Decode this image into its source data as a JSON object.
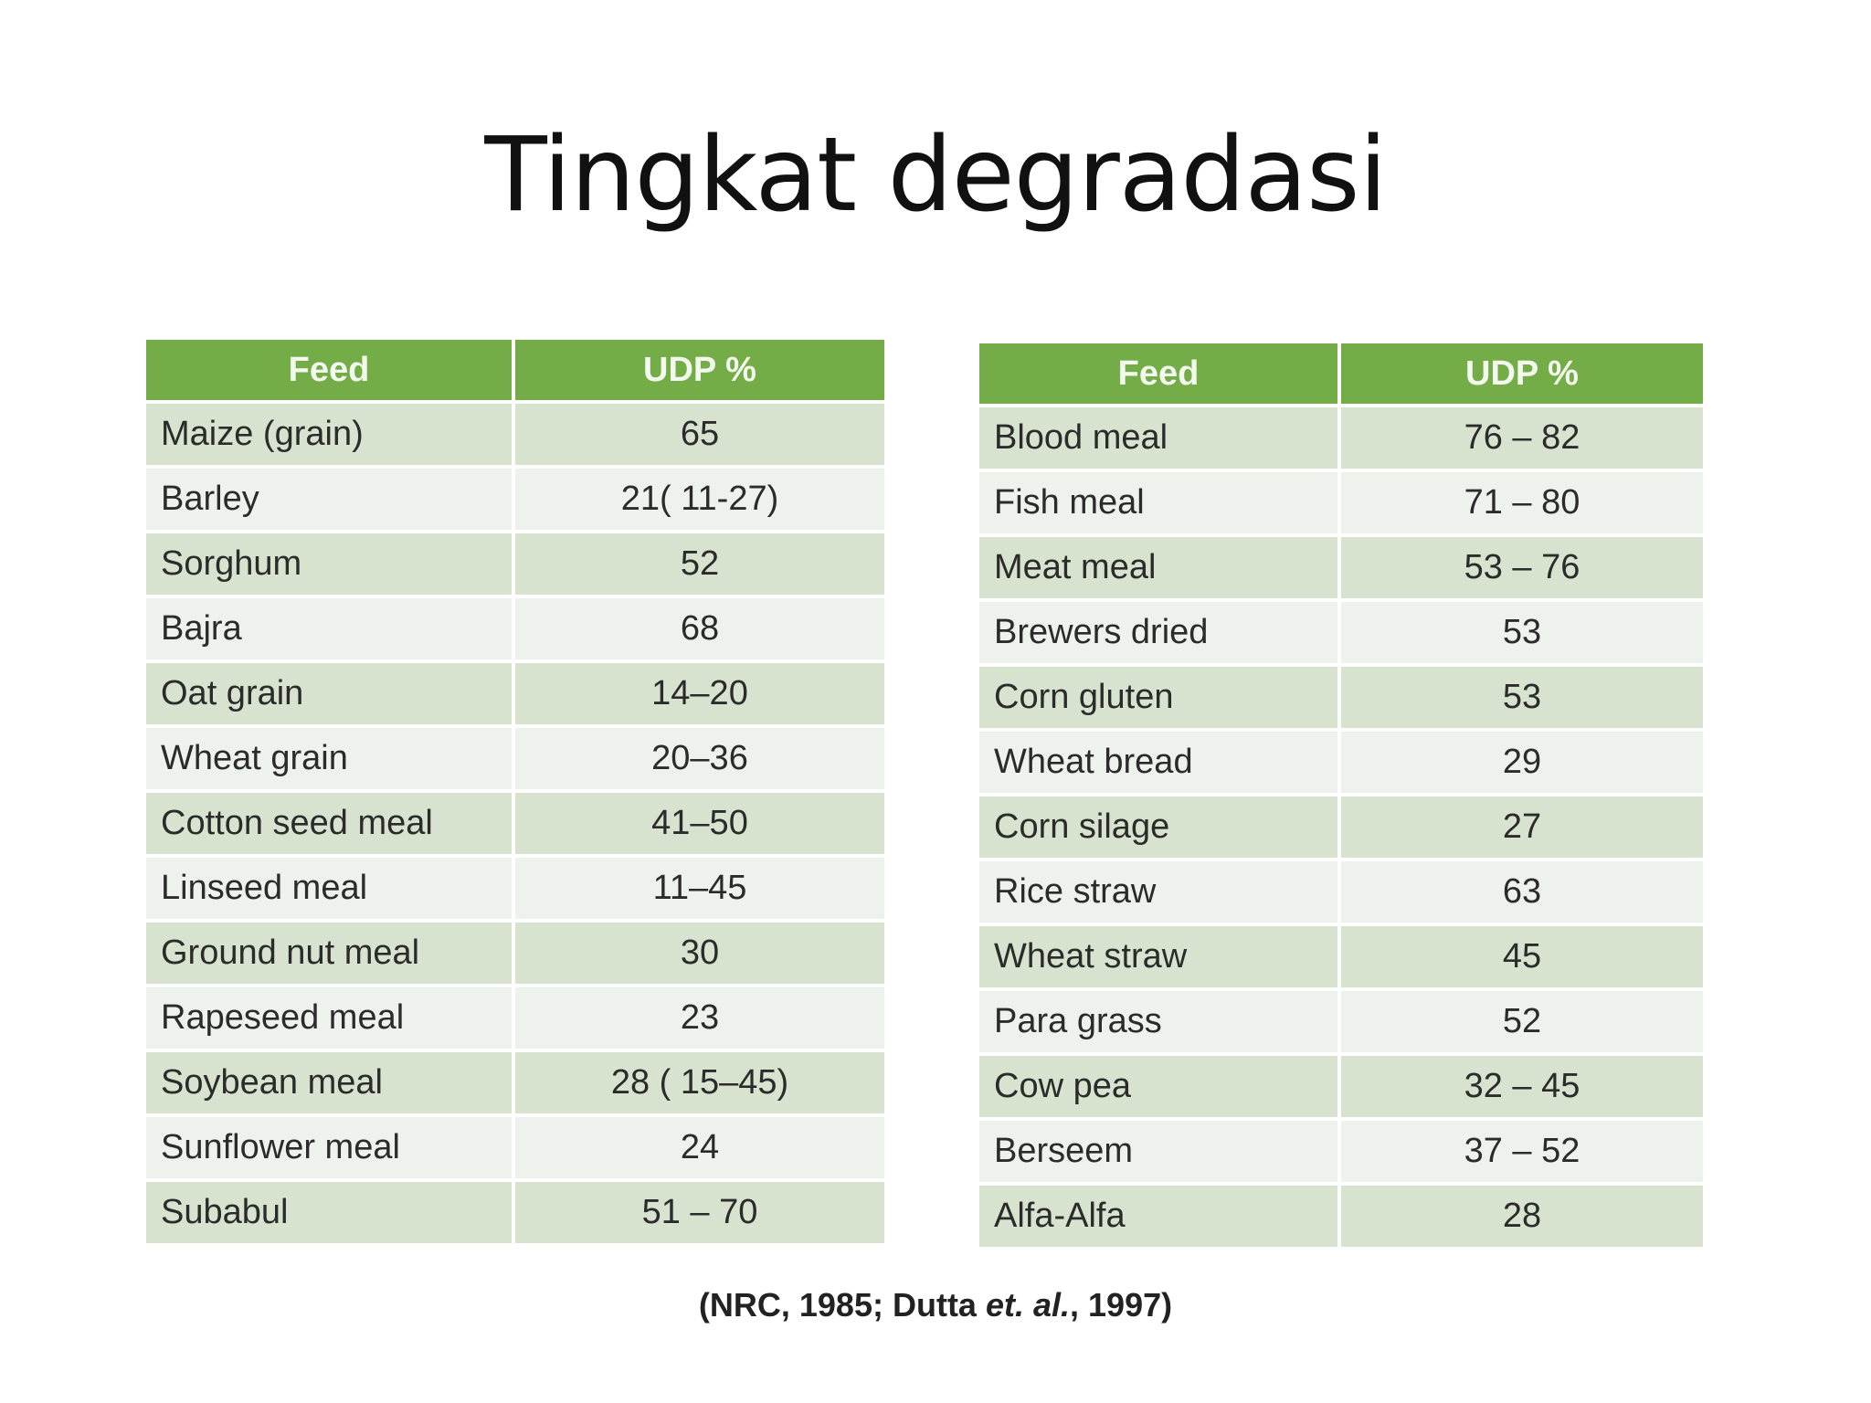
{
  "slide": {
    "title": "Tingkat degradasi"
  },
  "tables": {
    "left": {
      "headers": {
        "feed": "Feed",
        "udp": "UDP %"
      },
      "rows": [
        {
          "feed": "Maize (grain)",
          "udp": "65"
        },
        {
          "feed": "Barley",
          "udp": "21( 11-27)"
        },
        {
          "feed": "Sorghum",
          "udp": "52"
        },
        {
          "feed": "Bajra",
          "udp": "68"
        },
        {
          "feed": "Oat grain",
          "udp": "14–20"
        },
        {
          "feed": "Wheat grain",
          "udp": "20–36"
        },
        {
          "feed": "Cotton seed meal",
          "udp": "41–50"
        },
        {
          "feed": "Linseed meal",
          "udp": "11–45"
        },
        {
          "feed": "Ground nut meal",
          "udp": "30"
        },
        {
          "feed": "Rapeseed meal",
          "udp": "23"
        },
        {
          "feed": "Soybean meal",
          "udp": "28 ( 15–45)"
        },
        {
          "feed": "Sunflower meal",
          "udp": "24"
        },
        {
          "feed": "Subabul",
          "udp": "51 – 70"
        }
      ]
    },
    "right": {
      "headers": {
        "feed": "Feed",
        "udp": "UDP %"
      },
      "rows": [
        {
          "feed": "Blood meal",
          "udp": "76 – 82"
        },
        {
          "feed": "Fish meal",
          "udp": "71 – 80"
        },
        {
          "feed": "Meat meal",
          "udp": "53 – 76"
        },
        {
          "feed": "Brewers dried",
          "udp": "53"
        },
        {
          "feed": "Corn gluten",
          "udp": "53"
        },
        {
          "feed": "Wheat bread",
          "udp": "29"
        },
        {
          "feed": "Corn silage",
          "udp": "27"
        },
        {
          "feed": "Rice straw",
          "udp": "63"
        },
        {
          "feed": "Wheat straw",
          "udp": "45"
        },
        {
          "feed": "Para grass",
          "udp": "52"
        },
        {
          "feed": "Cow pea",
          "udp": "32 – 45"
        },
        {
          "feed": "Berseem",
          "udp": "37 – 52"
        },
        {
          "feed": "Alfa-Alfa",
          "udp": "28"
        }
      ]
    }
  },
  "citation": {
    "before": "(NRC, 1985; Dutta ",
    "italic": "et. al.",
    "after": ", 1997)"
  },
  "colors": {
    "header_green": "#74ad47",
    "row_dark": "#d7e3cf",
    "row_light": "#eef2ec"
  }
}
